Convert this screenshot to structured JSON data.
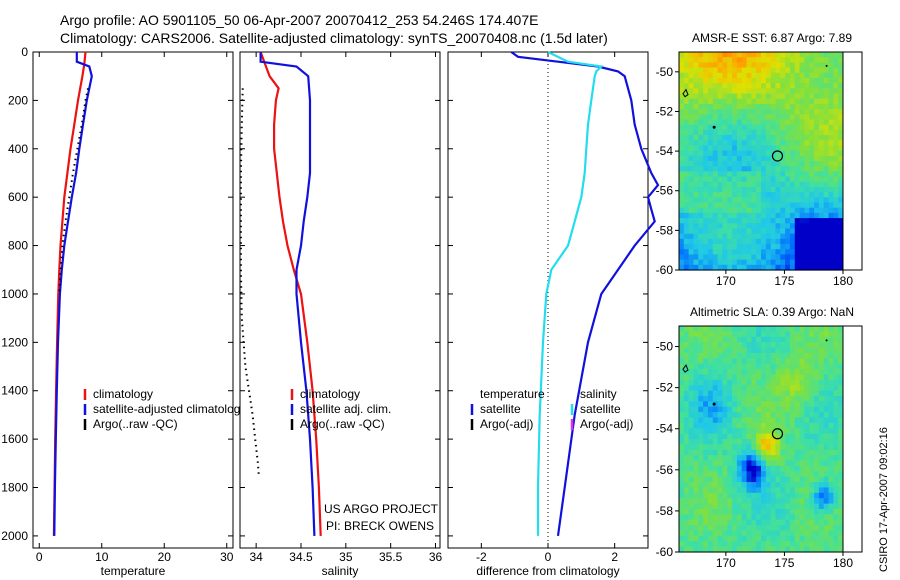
{
  "header": {
    "line1": "Argo profile: AO 5901105_50 06-Apr-2007 20070412_253 54.246S 174.407E",
    "line2": "Climatology: CARS2006. Satellite-adjusted climatology: synTS_20070408.nc (1.5d later)"
  },
  "credit": {
    "project": "US ARGO PROJECT",
    "pi": "PI: BRECK OWENS",
    "stamp": "CSIRO 17-Apr-2007 09:02:16"
  },
  "colors": {
    "climatology": "#ee1111",
    "satellite": "#1111dd",
    "argo": "#000000",
    "salinity_satellite": "#22ddee",
    "salinity_argo": "#dd33dd"
  },
  "chart_data": [
    {
      "type": "line",
      "id": "temperature",
      "xlabel": "temperature",
      "xlim": [
        -1,
        31
      ],
      "xticks": [
        0,
        10,
        20,
        30
      ],
      "ylim": [
        2050,
        0
      ],
      "yticks": [
        0,
        200,
        400,
        600,
        800,
        1000,
        1200,
        1400,
        1600,
        1800,
        2000
      ],
      "legend": {
        "placement": "lower-right",
        "entries": [
          "climatology",
          "satellite-adjusted climatology",
          "Argo(..raw -QC)"
        ]
      },
      "series": [
        {
          "name": "climatology",
          "style": "solid",
          "depth": [
            0,
            50,
            100,
            200,
            300,
            400,
            500,
            600,
            700,
            800,
            900,
            1000,
            1200,
            1400,
            1600,
            1800,
            2000
          ],
          "values": [
            7.4,
            7.2,
            6.9,
            6.2,
            5.6,
            5.0,
            4.5,
            4.0,
            3.7,
            3.4,
            3.2,
            3.05,
            2.85,
            2.7,
            2.55,
            2.45,
            2.35
          ]
        },
        {
          "name": "satellite-adjusted climatology",
          "style": "solid",
          "depth": [
            0,
            40,
            60,
            100,
            150,
            200,
            300,
            400,
            500,
            600,
            700,
            800,
            900,
            1000,
            1200,
            1400,
            1600,
            1800,
            2000
          ],
          "values": [
            6.0,
            6.0,
            8.0,
            8.4,
            8.0,
            7.6,
            7.0,
            6.4,
            5.9,
            5.2,
            4.6,
            4.0,
            3.6,
            3.3,
            3.0,
            2.8,
            2.65,
            2.5,
            2.4
          ]
        },
        {
          "name": "Argo(..raw -QC)",
          "style": "dotted",
          "depth": [
            150,
            200,
            300,
            400,
            500,
            600,
            700,
            800,
            900,
            1000
          ],
          "values": [
            7.8,
            7.4,
            6.8,
            6.1,
            5.4,
            4.8,
            4.2,
            3.7,
            3.4,
            3.2
          ]
        }
      ]
    },
    {
      "type": "line",
      "id": "salinity",
      "xlabel": "salinity",
      "xlim": [
        33.82,
        36.05
      ],
      "xticks": [
        34,
        34.5,
        35,
        35.5,
        36
      ],
      "ylim": [
        2050,
        0
      ],
      "legend": {
        "placement": "lower-right",
        "entries": [
          "climatology",
          "satellite adj. clim.",
          "Argo(..raw -QC)"
        ]
      },
      "series": [
        {
          "name": "climatology",
          "style": "solid",
          "depth": [
            0,
            100,
            150,
            200,
            300,
            400,
            500,
            600,
            700,
            800,
            900,
            1000,
            1200,
            1400,
            1600,
            1800,
            2000
          ],
          "values": [
            34.05,
            34.15,
            34.25,
            34.22,
            34.2,
            34.2,
            34.23,
            34.26,
            34.3,
            34.35,
            34.42,
            34.5,
            34.57,
            34.63,
            34.67,
            34.7,
            34.72
          ]
        },
        {
          "name": "satellite adj. clim.",
          "style": "solid",
          "depth": [
            0,
            40,
            60,
            100,
            200,
            300,
            400,
            500,
            600,
            700,
            800,
            900,
            1000,
            1200,
            1400,
            1600,
            1800,
            2000
          ],
          "values": [
            34.05,
            34.05,
            34.45,
            34.58,
            34.6,
            34.6,
            34.6,
            34.6,
            34.57,
            34.53,
            34.5,
            34.45,
            34.45,
            34.5,
            34.56,
            34.6,
            34.63,
            34.65
          ]
        },
        {
          "name": "Argo(..raw -QC)",
          "style": "dotted",
          "depth": [
            150,
            300,
            500,
            700,
            900,
            1100,
            1200,
            1300,
            1400,
            1500,
            1600,
            1700,
            1750
          ],
          "values": [
            33.85,
            33.84,
            33.83,
            33.83,
            33.83,
            33.84,
            33.86,
            33.88,
            33.92,
            33.96,
            33.99,
            34.02,
            34.03
          ]
        }
      ]
    },
    {
      "type": "line",
      "id": "difference",
      "xlabel": "difference from climatology",
      "xlim": [
        -3,
        3
      ],
      "xticks": [
        -2,
        0,
        2
      ],
      "ylim": [
        2050,
        0
      ],
      "zero_line": true,
      "legend": {
        "placement": "lower-right",
        "columns": [
          {
            "header": "temperature",
            "entries": [
              "satellite",
              "Argo(-adj)"
            ]
          },
          {
            "header": "salinity",
            "entries": [
              "satellite",
              "Argo(-adj)"
            ]
          }
        ]
      },
      "series": [
        {
          "name": "temperature satellite",
          "style": "solid",
          "depth": [
            0,
            20,
            40,
            60,
            80,
            100,
            150,
            200,
            300,
            400,
            500,
            550,
            600,
            650,
            700,
            800,
            1000,
            1200,
            1500,
            1800,
            2000
          ],
          "values": [
            -1.1,
            -0.9,
            0.3,
            1.5,
            2.1,
            2.3,
            2.4,
            2.5,
            2.6,
            2.8,
            3.1,
            3.3,
            3.0,
            3.1,
            3.2,
            2.6,
            1.6,
            1.2,
            0.8,
            0.5,
            0.3
          ]
        },
        {
          "name": "salinity satellite",
          "style": "solid",
          "depth": [
            0,
            40,
            60,
            80,
            100,
            200,
            300,
            400,
            500,
            600,
            700,
            800,
            900,
            1000,
            1200,
            1500,
            1800,
            2000
          ],
          "values": [
            0.0,
            0.6,
            1.6,
            1.45,
            1.4,
            1.3,
            1.2,
            1.15,
            1.1,
            1.0,
            0.8,
            0.6,
            0.1,
            -0.05,
            -0.15,
            -0.25,
            -0.3,
            -0.3
          ]
        }
      ]
    },
    {
      "type": "heatmap",
      "id": "sst_map",
      "title": "AMSR-E SST: 6.87 Argo: 7.89",
      "xlim": [
        166,
        180
      ],
      "ylim": [
        -60,
        -49
      ],
      "xticks": [
        170,
        175,
        180
      ],
      "yticks": [
        -50,
        -52,
        -54,
        -56,
        -58,
        -60
      ],
      "argo_position": {
        "lon": 174.407,
        "lat": -54.246
      },
      "colormap": [
        "#0000c8",
        "#0070ff",
        "#20c8e8",
        "#40e0a0",
        "#80e040",
        "#e0e000",
        "#ffa000",
        "#ff5000"
      ]
    },
    {
      "type": "heatmap",
      "id": "sla_map",
      "title": "Altimetric SLA: 0.39 Argo: NaN",
      "xlim": [
        166,
        180
      ],
      "ylim": [
        -60,
        -49
      ],
      "xticks": [
        170,
        175,
        180
      ],
      "yticks": [
        -50,
        -52,
        -54,
        -56,
        -58,
        -60
      ],
      "argo_position": {
        "lon": 174.407,
        "lat": -54.246
      },
      "colormap": [
        "#0000c8",
        "#0070ff",
        "#20c8e8",
        "#40e0a0",
        "#80e040",
        "#e0e000",
        "#ffa000",
        "#ff5000"
      ]
    }
  ]
}
